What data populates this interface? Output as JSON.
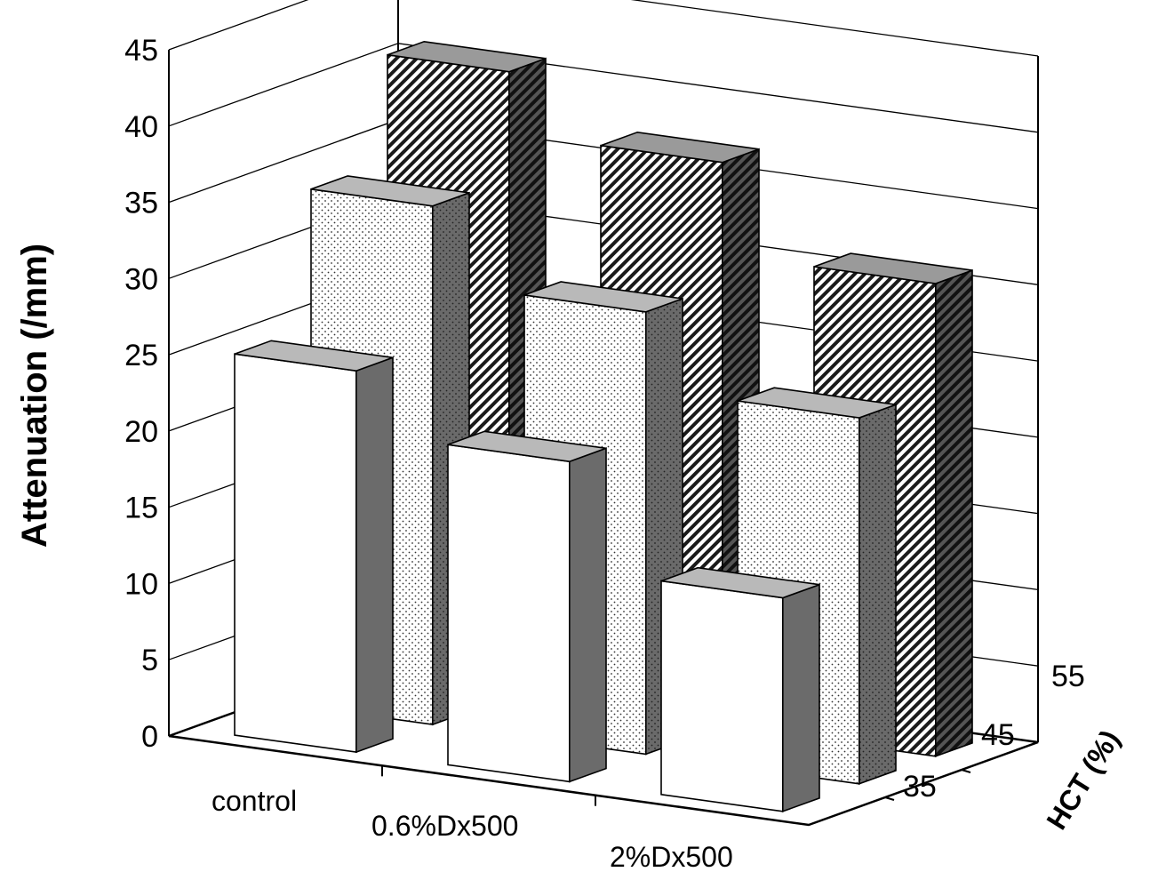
{
  "chart_data": {
    "type": "bar",
    "style": "3d-grouped",
    "ylabel": "Attenuation (/mm)",
    "zlabel": "HCT (%)",
    "ylim": [
      0,
      45
    ],
    "yticks": [
      "0",
      "5",
      "10",
      "15",
      "20",
      "25",
      "30",
      "35",
      "40",
      "45"
    ],
    "categories": [
      "control",
      "0.6%Dx500",
      "2%Dx500"
    ],
    "grid": true,
    "series": [
      {
        "name": "35",
        "pattern": "solid-white",
        "values": [
          25,
          21,
          14
        ]
      },
      {
        "name": "45",
        "pattern": "dotted",
        "values": [
          34,
          29,
          24
        ]
      },
      {
        "name": "55",
        "pattern": "diagonal-hatch",
        "values": [
          41,
          37,
          31
        ]
      }
    ]
  }
}
